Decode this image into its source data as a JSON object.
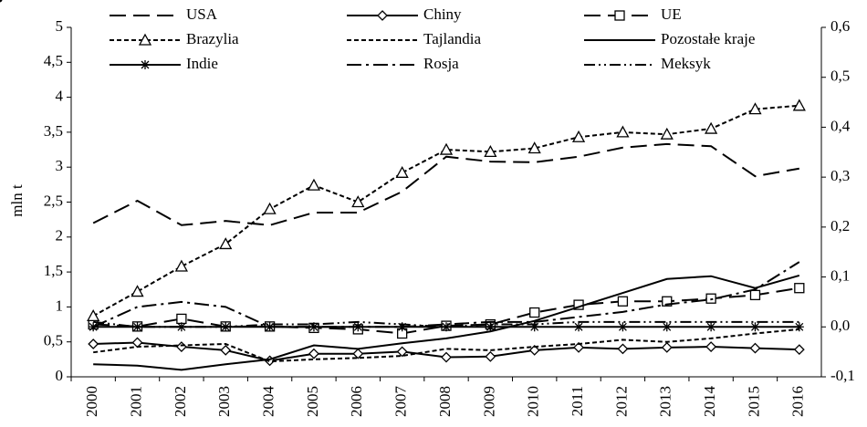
{
  "chart_data": {
    "type": "line",
    "y_label": "mln t",
    "categories": [
      "2000",
      "2001",
      "2002",
      "2003",
      "2004",
      "2005",
      "2006",
      "2007",
      "2008",
      "2009",
      "2010",
      "2011",
      "2012",
      "2013",
      "2014",
      "2015",
      "2016"
    ],
    "ylim": [
      0,
      5
    ],
    "yticks": [
      0,
      {
        "value": 0.5,
        "label": "0,5"
      },
      1,
      {
        "value": 1.5,
        "label": "1,5"
      },
      2,
      {
        "value": 2.5,
        "label": "2,5"
      },
      3,
      {
        "value": 3.5,
        "label": "3,5"
      },
      4,
      {
        "value": 4.5,
        "label": "4,5"
      },
      5
    ],
    "y2lim": [
      -0.1,
      0.6
    ],
    "y2ticks": [
      {
        "value": -0.1,
        "label": "-0,1"
      },
      {
        "value": 0,
        "label": "0,0"
      },
      {
        "value": 0.1,
        "label": "0,1"
      },
      {
        "value": 0.2,
        "label": "0,2"
      },
      {
        "value": 0.3,
        "label": "0,3"
      },
      {
        "value": 0.4,
        "label": "0,4"
      },
      {
        "value": 0.5,
        "label": "0,5"
      },
      {
        "value": 0.6,
        "label": "0,6"
      }
    ],
    "series": [
      {
        "name": "USA",
        "color": "#000000",
        "dash": "long",
        "marker": "none",
        "values": [
          2.2,
          2.52,
          2.17,
          2.23,
          2.17,
          2.35,
          2.35,
          2.65,
          3.15,
          3.08,
          3.07,
          3.15,
          3.28,
          3.33,
          3.3,
          2.87,
          2.98
        ]
      },
      {
        "name": "Chiny",
        "color": "#000000",
        "dash": "solid",
        "marker": "diamond",
        "values": [
          0.47,
          0.49,
          0.43,
          0.38,
          0.23,
          0.33,
          0.33,
          0.36,
          0.28,
          0.29,
          0.38,
          0.42,
          0.4,
          0.42,
          0.43,
          0.41,
          0.39
        ]
      },
      {
        "name": "UE",
        "color": "#000000",
        "dash": "long",
        "marker": "square",
        "values": [
          0.75,
          0.72,
          0.83,
          0.72,
          0.72,
          0.7,
          0.68,
          0.62,
          0.73,
          0.75,
          0.92,
          1.03,
          1.08,
          1.08,
          1.12,
          1.17,
          1.27
        ]
      },
      {
        "name": "Brazylia",
        "color": "#000000",
        "dash": "short",
        "marker": "triangle",
        "values": [
          0.87,
          1.22,
          1.58,
          1.9,
          2.4,
          2.74,
          2.5,
          2.92,
          3.25,
          3.22,
          3.27,
          3.43,
          3.5,
          3.47,
          3.55,
          3.83,
          3.88
        ]
      },
      {
        "name": "Tajlandia",
        "color": "#000000",
        "dash": "short",
        "marker": "dot",
        "values": [
          0.35,
          0.43,
          0.45,
          0.47,
          0.22,
          0.25,
          0.27,
          0.3,
          0.4,
          0.38,
          0.43,
          0.47,
          0.53,
          0.5,
          0.55,
          0.62,
          0.68
        ]
      },
      {
        "name": "Pozostałe kraje",
        "color": "#000000",
        "dash": "solid",
        "marker": "none",
        "values": [
          0.18,
          0.16,
          0.1,
          0.18,
          0.25,
          0.45,
          0.4,
          0.48,
          0.55,
          0.65,
          0.8,
          1.0,
          1.2,
          1.4,
          1.44,
          1.27,
          1.45
        ]
      },
      {
        "name": "Indie",
        "color": "#000000",
        "dash": "solid",
        "marker": "star",
        "axis": "y2",
        "values": [
          0.0,
          0.0,
          0.0,
          0.0,
          0.0,
          0.0,
          0.0,
          0.0,
          0.0,
          0.0,
          0.0,
          0.0,
          0.0,
          0.0,
          0.0,
          0.0,
          0.0
        ]
      },
      {
        "name": "Rosja",
        "color": "#000000",
        "dash": "dashdot",
        "marker": "none",
        "axis": "y2",
        "values": [
          0.0,
          0.04,
          0.05,
          0.04,
          0.0,
          0.0,
          0.0,
          0.0,
          0.005,
          0.01,
          0.01,
          0.02,
          0.03,
          0.045,
          0.055,
          0.075,
          0.13
        ]
      },
      {
        "name": "Meksyk",
        "color": "#000000",
        "dash": "dashdotdot",
        "marker": "none",
        "axis": "y2",
        "values": [
          0.01,
          0.0,
          0.0,
          0.0,
          0.005,
          0.005,
          0.01,
          0.005,
          0.0,
          0.005,
          0.005,
          0.01,
          0.01,
          0.01,
          0.01,
          0.01,
          0.01
        ]
      }
    ]
  }
}
